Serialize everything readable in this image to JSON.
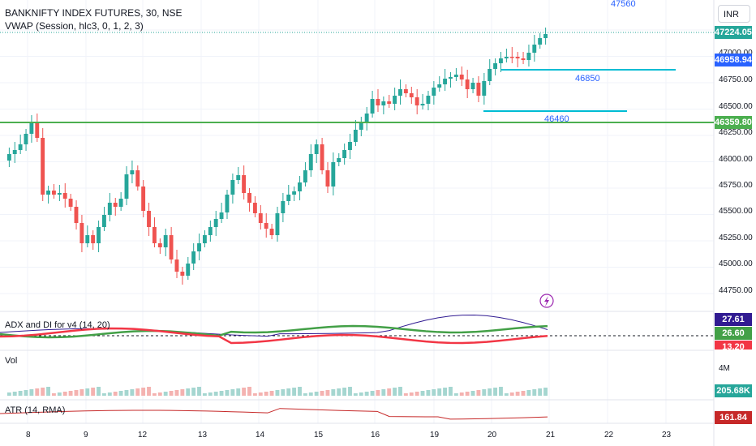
{
  "header": {
    "symbol_line": "BANKNIFTY INDEX FUTURES, 30, NSE",
    "indicator_line": "VWAP (Session, hlc3, 0, 1, 2, 3)"
  },
  "currency": "INR",
  "price_axis": {
    "ticks": [
      "44750.00",
      "45000.00",
      "45250.00",
      "45500.00",
      "45750.00",
      "46000.00",
      "46250.00",
      "46500.00",
      "46750.00",
      "47000.00"
    ],
    "last_price": "47224.05",
    "level_a": "46958.94",
    "level_b": "46359.80",
    "last_price_color": "#26a69a",
    "level_a_color": "#2962ff",
    "level_b_color": "#4caf50"
  },
  "levels": {
    "top": "47560",
    "upper": "46850",
    "lower": "46460"
  },
  "panels": {
    "adx": {
      "title": "ADX and DI for v4 (14, 20)",
      "adx_value": "27.61",
      "di_plus_value": "26.60",
      "di_minus_value": "13.20"
    },
    "vol": {
      "title": "Vol",
      "scale": "4M",
      "value": "205.68K"
    },
    "atr": {
      "title": "ATR (14, RMA)",
      "value": "161.84"
    }
  },
  "time_axis": [
    "8",
    "9",
    "12",
    "13",
    "14",
    "15",
    "16",
    "19",
    "20",
    "21",
    "22",
    "23"
  ],
  "colors": {
    "up": "#26a69a",
    "down": "#ef5350",
    "adx": "#311b92",
    "di_plus": "#43a047",
    "di_minus": "#f23645"
  },
  "icons": {
    "alert": "lightning-icon"
  }
}
